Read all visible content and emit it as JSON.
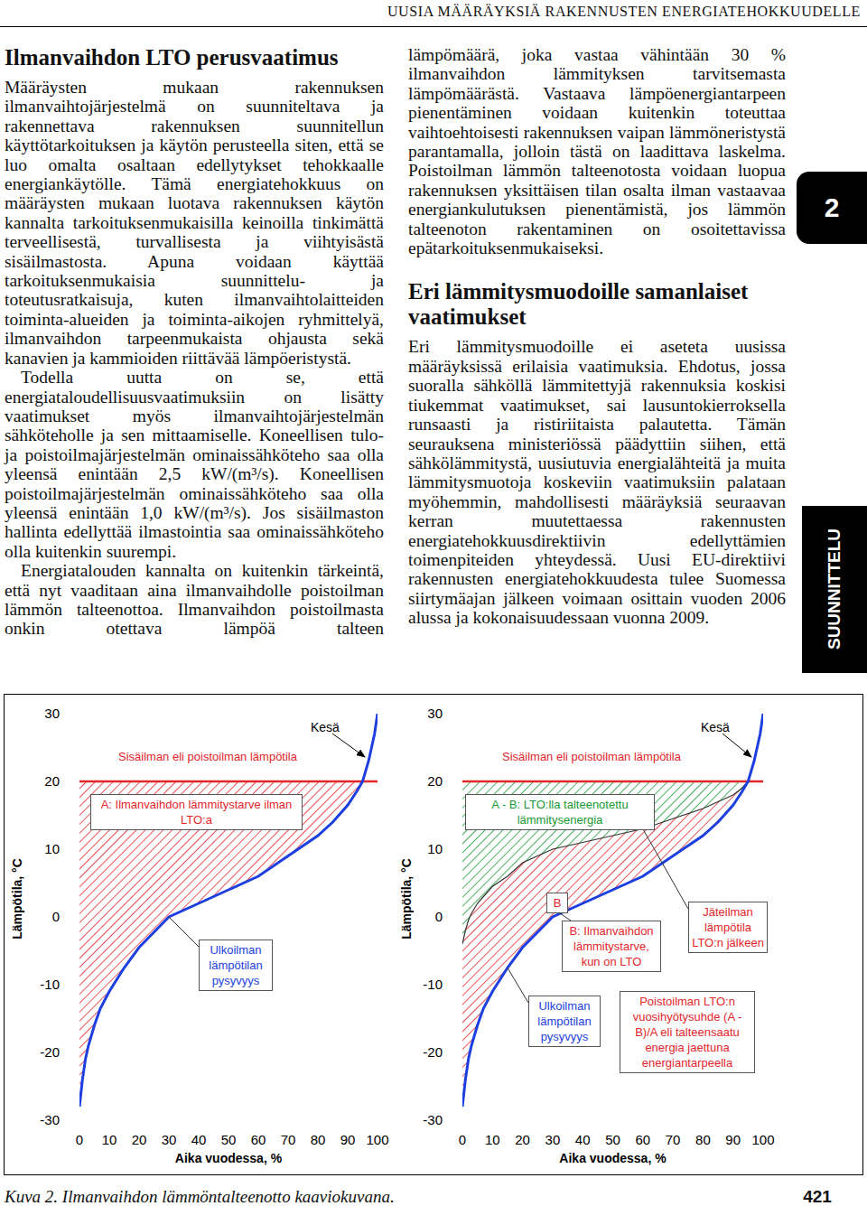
{
  "header": {
    "running_title": "UUSIA MÄÄRÄYKSIÄ RAKENNUSTEN ENERGIATEHOKKUUDELLE"
  },
  "tabs": {
    "chapter": "2",
    "section": "SUUNNITTELU"
  },
  "article": {
    "left": [
      {
        "heading": "Ilmanvaihdon LTO perusvaatimus"
      },
      {
        "text": "Määräysten mukaan rakennuksen ilmanvaihtojärjestelmä on suunniteltava ja rakennettava rakennuksen suunnitellun käyttötarkoituksen ja käytön perusteella siten, että se luo omalta osaltaan edellytykset tehokkaalle energiankäytölle. Tämä energiatehokkuus on määräysten mukaan luotava rakennuksen käytön kannalta tarkoituksenmukaisilla keinoilla tinkimättä terveellisestä, turvallisesta ja viihtyisästä sisäilmastosta. Apuna voidaan käyttää tarkoituksenmukaisia suunnittelu- ja toteutusratkaisuja, kuten ilmanvaihtolaitteiden toiminta-alueiden ja toiminta-aikojen ryhmittelyä, ilmanvaihdon tarpeenmukaista ohjausta sekä kanavien ja kammioiden riittävää lämpöeristystä."
      },
      {
        "text": "Todella uutta on se, että energiataloudellisuusvaatimuksiin on lisätty vaatimukset myös ilmanvaihtojärjestelmän sähköteholle ja sen mittaamiselle. Koneellisen tulo- ja poistoilmajärjestelmän ominaissähköteho saa olla yleensä enintään 2,5 kW/(m³/s). Koneellisen poistoilmajärjestelmän ominaissähköteho saa olla yleensä enintään 1,0 kW/(m³/s). Jos sisäilmaston hallinta edellyttää ilmastointia saa ominaissähköteho olla kuitenkin suurempi."
      },
      {
        "text": "Energiatalouden kannalta on kuitenkin tärkeintä, että nyt vaaditaan aina ilmanvaihdolle poistoilman lämmön talteenottoa. Ilmanvaihdon poistoilmasta onkin otettava lämpöä talteen"
      }
    ],
    "right": [
      {
        "text": "lämpömäärä, joka vastaa vähintään 30 % ilmanvaihdon lämmityksen tarvitsemasta lämpömäärästä. Vastaava lämpöenergiantarpeen pienentäminen voidaan kuitenkin toteuttaa vaihtoehtoisesti rakennuksen vaipan lämmöneristystä parantamalla, jolloin tästä on laadittava laskelma. Poistoilman lämmön talteenotosta voidaan luopua rakennuksen yksittäisen tilan osalta ilman vastaavaa energiankulutuksen pienentämistä, jos lämmön talteenoton rakentaminen on osoitettavissa epätarkoituksenmukaiseksi."
      },
      {
        "heading": "Eri lämmitysmuodoille samanlaiset vaatimukset"
      },
      {
        "text": "Eri lämmitysmuodoille ei aseteta uusissa määräyksissä erilaisia vaatimuksia. Ehdotus, jossa suoralla sähköllä lämmitettyjä rakennuksia koskisi tiukemmat vaatimukset, sai lausuntokierroksella runsaasti ja ristiriitaista palautetta. Tämän seurauksena ministeriössä päädyttiin siihen, että sähkölämmitystä, uusiutuvia energialähteitä ja muita lämmitysmuotoja koskeviin vaatimuksiin palataan myöhemmin, mahdollisesti määräyksiä seuraavan kerran muutettaessa rakennusten energiatehokkuusdirektiivin edellyttämien toimenpiteiden yhteydessä. Uusi EU-direktiivi rakennusten energiatehokkuudesta tulee Suomessa siirtymäajan jälkeen voimaan osittain vuoden 2006 alussa ja kokonaisuudessaan vuonna 2009."
      }
    ]
  },
  "footer": {
    "caption": "Kuva 2. Ilmanvaihdon lämmöntalteenotto kaaviokuvana.",
    "page_number": "421"
  },
  "chart_data": [
    {
      "type": "line",
      "xlabel": "Aika vuodessa, %",
      "ylabel": "Lämpötila, °C",
      "xlim": [
        0,
        100
      ],
      "ylim": [
        -30,
        30
      ],
      "xticks": [
        0,
        10,
        20,
        30,
        40,
        50,
        60,
        70,
        80,
        90,
        100
      ],
      "yticks": [
        -30,
        -20,
        -10,
        0,
        10,
        20,
        30
      ],
      "x": [
        0,
        1,
        2,
        3,
        5,
        7,
        10,
        15,
        20,
        30,
        40,
        50,
        60,
        70,
        80,
        85,
        90,
        93,
        95,
        97,
        98,
        99,
        100
      ],
      "series": [
        {
          "name": "Sisäilman eli poistoilman lämpötila",
          "color": "#e3262b",
          "values": [
            20,
            20,
            20,
            20,
            20,
            20,
            20,
            20,
            20,
            20,
            20,
            20,
            20,
            20,
            20,
            20,
            20,
            20,
            20,
            20,
            20,
            20,
            20
          ]
        },
        {
          "name": "Ulkoilman lämpötilan pysyvyys",
          "color": "#1d3fe0",
          "values": [
            -28,
            -24,
            -21,
            -19,
            -16,
            -13.5,
            -11,
            -7.5,
            -4.5,
            0,
            2,
            4,
            6,
            9,
            12,
            14,
            16.5,
            18.5,
            20,
            23,
            25,
            27,
            30
          ]
        }
      ],
      "annotations": [
        "Kesä",
        "A: Ilmanvaihdon lämmitystarve ilman LTO:a"
      ]
    },
    {
      "type": "line",
      "xlabel": "Aika vuodessa, %",
      "ylabel": "Lämpötila, °C",
      "xlim": [
        0,
        100
      ],
      "ylim": [
        -30,
        30
      ],
      "xticks": [
        0,
        10,
        20,
        30,
        40,
        50,
        60,
        70,
        80,
        90,
        100
      ],
      "yticks": [
        -30,
        -20,
        -10,
        0,
        10,
        20,
        30
      ],
      "x": [
        0,
        1,
        2,
        3,
        5,
        7,
        10,
        15,
        20,
        30,
        40,
        50,
        60,
        70,
        80,
        85,
        90,
        93,
        95,
        97,
        98,
        99,
        100
      ],
      "series": [
        {
          "name": "Sisäilman eli poistoilman lämpötila",
          "color": "#e3262b",
          "values": [
            20,
            20,
            20,
            20,
            20,
            20,
            20,
            20,
            20,
            20,
            20,
            20,
            20,
            20,
            20,
            20,
            20,
            20,
            20,
            20,
            20,
            20,
            20
          ]
        },
        {
          "name": "Jäteilman lämpötila LTO:n jälkeen",
          "color": "#333333",
          "values": [
            -4,
            -2,
            -0.5,
            0.5,
            2,
            3,
            4.5,
            6,
            8,
            10,
            11,
            12,
            13,
            14.5,
            16,
            17,
            18,
            19,
            20,
            null,
            null,
            null,
            null
          ]
        },
        {
          "name": "Ulkoilman lämpötilan pysyvyys",
          "color": "#1d3fe0",
          "values": [
            -28,
            -24,
            -21,
            -19,
            -16,
            -13.5,
            -11,
            -7.5,
            -4.5,
            0,
            2,
            4,
            6,
            9,
            12,
            14,
            16.5,
            18.5,
            20,
            23,
            25,
            27,
            30
          ]
        }
      ],
      "annotations": [
        "Kesä",
        "A - B: LTO:lla talteenotettu lämmitysenergia",
        "B",
        "B: Ilmanvaihdon lämmitystarve, kun on LTO",
        "Poistoilman LTO:n vuosihyötysuhde (A - B)/A eli talteensaatu energia jaettuna energiantarpeella"
      ]
    }
  ]
}
